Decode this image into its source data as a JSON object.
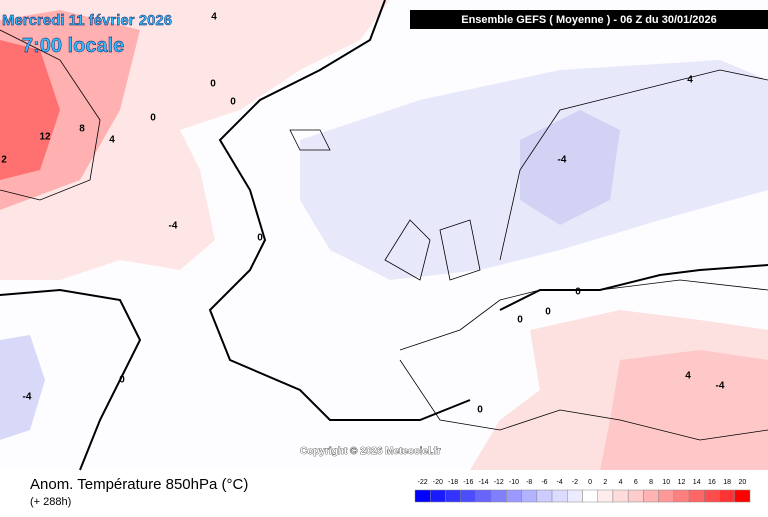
{
  "header": {
    "date": "Mercredi 11 février 2026",
    "time": "7:00 locale",
    "run": "Ensemble GEFS  ( Moyenne )  -  06 Z du 30/01/2026"
  },
  "copyright": "Copyright © 2026 Meteociel.fr",
  "footer": {
    "title": "Anom. Température 850hPa (°C)",
    "lead": "(+ 288h)"
  },
  "colorbar": {
    "ticks": [
      -22,
      -20,
      -18,
      -16,
      -14,
      -12,
      -10,
      -8,
      -6,
      -4,
      -2,
      0,
      2,
      4,
      6,
      8,
      10,
      12,
      14,
      16,
      18,
      20
    ],
    "colors": [
      "#0000ff",
      "#1a1aff",
      "#3333ff",
      "#4d4dff",
      "#6666ff",
      "#7f7fff",
      "#9999ff",
      "#b3b3ff",
      "#ccccff",
      "#dcdcff",
      "#ececff",
      "#ffffff",
      "#ffecec",
      "#ffdcdc",
      "#ffcccc",
      "#ffb3b3",
      "#ff9999",
      "#ff7f7f",
      "#ff6666",
      "#ff4d4d",
      "#ff3333",
      "#ff0000"
    ]
  },
  "contour_labels": [
    "4",
    "0",
    "0",
    "0",
    "12",
    "8",
    "4",
    "2",
    "-4",
    "0",
    "0",
    "-4",
    "4",
    "-4",
    "0",
    "0",
    "4",
    "-4",
    "0",
    "0"
  ]
}
